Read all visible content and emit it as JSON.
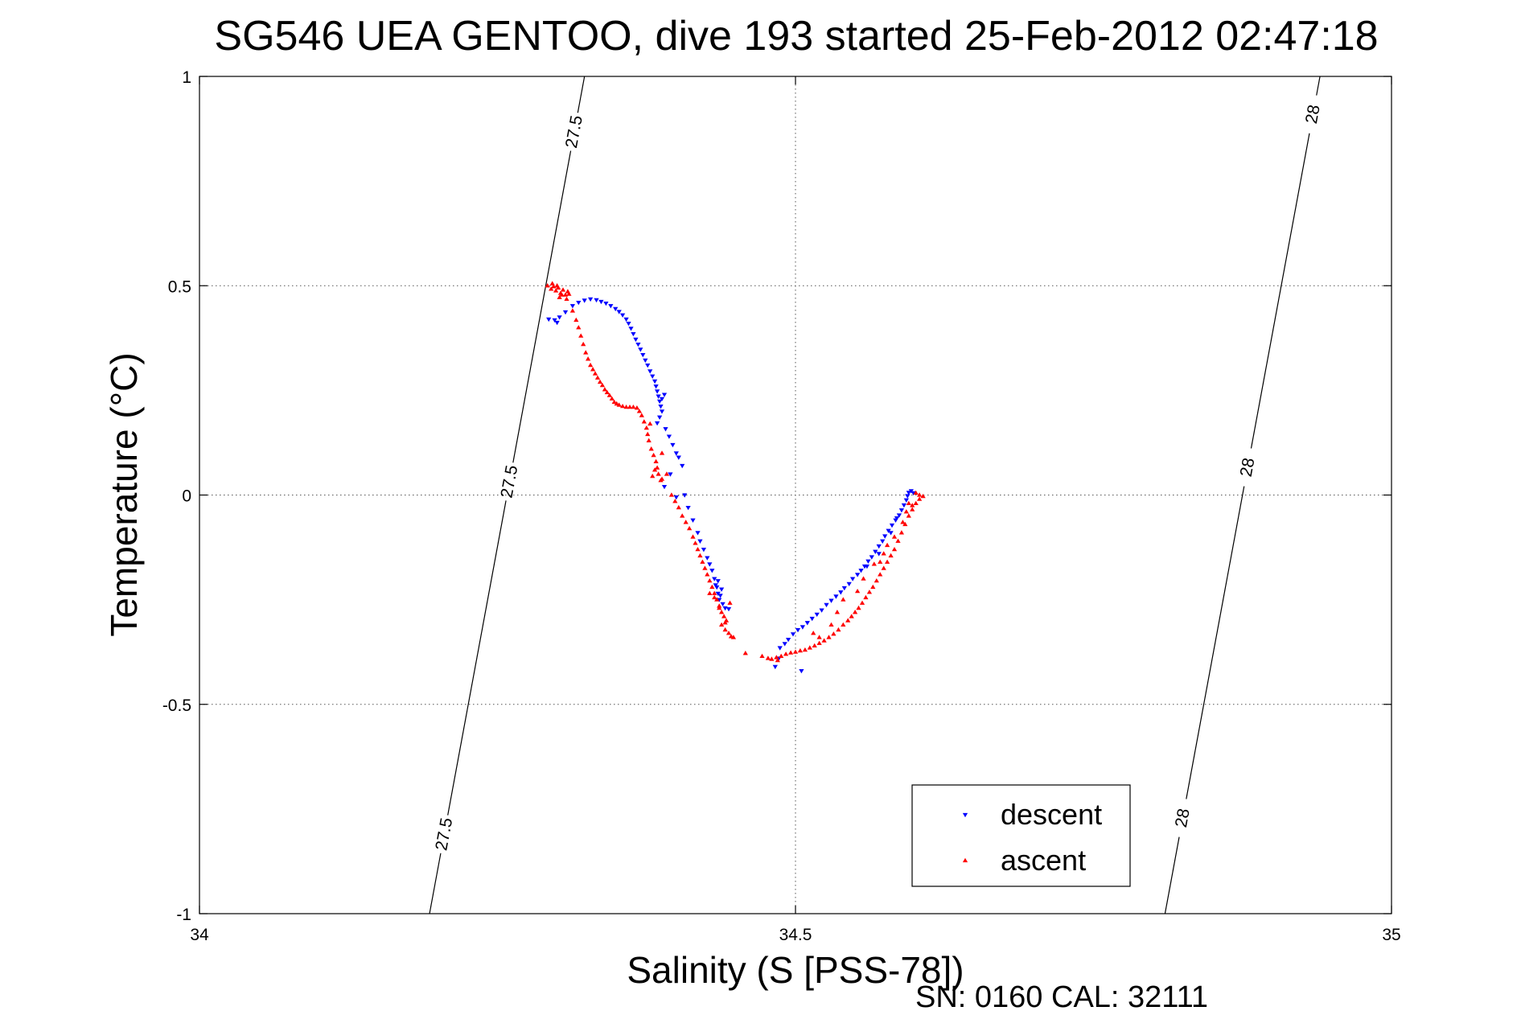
{
  "chart_data": {
    "type": "scatter",
    "title": "SG546 UEA GENTOO, dive 193 started 25-Feb-2012 02:47:18",
    "xlabel": "Salinity (S [PSS-78])",
    "ylabel": "Temperature (°C)",
    "xlim": [
      34,
      35
    ],
    "ylim": [
      -1,
      1
    ],
    "xticks": [
      "34",
      "34.5",
      "35"
    ],
    "yticks": [
      "1",
      "0.5",
      "0",
      "-0.5",
      "-1"
    ],
    "grid": true,
    "legend_position": "bottom-right",
    "footer": "SN: 0160  CAL: 32111",
    "density_contours": [
      {
        "label": "27.5",
        "points": [
          [
            34.193,
            -1.0
          ],
          [
            34.323,
            1.0
          ]
        ],
        "label_positions": [
          [
            34.205,
            -0.81
          ],
          [
            34.245,
            0.04
          ],
          [
            34.31,
            0.87
          ]
        ]
      },
      {
        "label": "28",
        "points": [
          [
            34.81,
            -1.0
          ],
          [
            34.94,
            1.0
          ]
        ],
        "label_positions": [
          [
            34.822,
            -0.77
          ],
          [
            34.872,
            0.07
          ],
          [
            34.933,
            0.91
          ]
        ]
      }
    ],
    "series": [
      {
        "name": "descent",
        "color": "#0000ff",
        "marker": "triangle-down",
        "points": [
          [
            34.293,
            0.42
          ],
          [
            34.298,
            0.418
          ],
          [
            34.3,
            0.412
          ],
          [
            34.302,
            0.425
          ],
          [
            34.307,
            0.437
          ],
          [
            34.313,
            0.452
          ],
          [
            34.318,
            0.46
          ],
          [
            34.323,
            0.465
          ],
          [
            34.328,
            0.468
          ],
          [
            34.333,
            0.466
          ],
          [
            34.337,
            0.462
          ],
          [
            34.341,
            0.458
          ],
          [
            34.345,
            0.452
          ],
          [
            34.349,
            0.445
          ],
          [
            34.352,
            0.438
          ],
          [
            34.355,
            0.43
          ],
          [
            34.358,
            0.42
          ],
          [
            34.36,
            0.41
          ],
          [
            34.362,
            0.398
          ],
          [
            34.364,
            0.385
          ],
          [
            34.366,
            0.372
          ],
          [
            34.368,
            0.36
          ],
          [
            34.37,
            0.348
          ],
          [
            34.372,
            0.335
          ],
          [
            34.374,
            0.322
          ],
          [
            34.376,
            0.31
          ],
          [
            34.378,
            0.296
          ],
          [
            34.38,
            0.284
          ],
          [
            34.382,
            0.272
          ],
          [
            34.383,
            0.26
          ],
          [
            34.384,
            0.248
          ],
          [
            34.385,
            0.236
          ],
          [
            34.386,
            0.224
          ],
          [
            34.387,
            0.212
          ],
          [
            34.388,
            0.2
          ],
          [
            34.386,
            0.186
          ],
          [
            34.384,
            0.172
          ],
          [
            34.388,
            0.23
          ],
          [
            34.39,
            0.24
          ],
          [
            34.391,
            0.158
          ],
          [
            34.394,
            0.14
          ],
          [
            34.397,
            0.12
          ],
          [
            34.4,
            0.1
          ],
          [
            34.402,
            0.09
          ],
          [
            34.405,
            0.07
          ],
          [
            34.395,
            0.05
          ],
          [
            34.39,
            0.02
          ],
          [
            34.4,
            -0.005
          ],
          [
            34.407,
            0.0
          ],
          [
            34.41,
            -0.03
          ],
          [
            34.414,
            -0.06
          ],
          [
            34.418,
            -0.09
          ],
          [
            34.42,
            -0.11
          ],
          [
            34.423,
            -0.13
          ],
          [
            34.426,
            -0.15
          ],
          [
            34.428,
            -0.165
          ],
          [
            34.43,
            -0.18
          ],
          [
            34.432,
            -0.2
          ],
          [
            34.434,
            -0.22
          ],
          [
            34.435,
            -0.235
          ],
          [
            34.436,
            -0.25
          ],
          [
            34.437,
            -0.24
          ],
          [
            34.439,
            -0.26
          ],
          [
            34.441,
            -0.27
          ],
          [
            34.444,
            -0.272
          ],
          [
            34.435,
            -0.205
          ],
          [
            34.433,
            -0.215
          ],
          [
            34.438,
            -0.225
          ],
          [
            34.483,
            -0.41
          ],
          [
            34.486,
            -0.39
          ],
          [
            34.487,
            -0.365
          ],
          [
            34.491,
            -0.355
          ],
          [
            34.494,
            -0.345
          ],
          [
            34.498,
            -0.332
          ],
          [
            34.502,
            -0.322
          ],
          [
            34.506,
            -0.315
          ],
          [
            34.51,
            -0.305
          ],
          [
            34.514,
            -0.295
          ],
          [
            34.518,
            -0.285
          ],
          [
            34.522,
            -0.275
          ],
          [
            34.526,
            -0.262
          ],
          [
            34.53,
            -0.252
          ],
          [
            34.534,
            -0.242
          ],
          [
            34.538,
            -0.232
          ],
          [
            34.541,
            -0.222
          ],
          [
            34.545,
            -0.212
          ],
          [
            34.548,
            -0.2
          ],
          [
            34.552,
            -0.19
          ],
          [
            34.555,
            -0.18
          ],
          [
            34.558,
            -0.17
          ],
          [
            34.561,
            -0.158
          ],
          [
            34.564,
            -0.148
          ],
          [
            34.567,
            -0.135
          ],
          [
            34.57,
            -0.122
          ],
          [
            34.573,
            -0.11
          ],
          [
            34.575,
            -0.098
          ],
          [
            34.578,
            -0.085
          ],
          [
            34.581,
            -0.072
          ],
          [
            34.584,
            -0.06
          ],
          [
            34.587,
            -0.048
          ],
          [
            34.589,
            -0.036
          ],
          [
            34.591,
            -0.024
          ],
          [
            34.593,
            -0.012
          ],
          [
            34.594,
            -0.002
          ],
          [
            34.595,
            0.006
          ],
          [
            34.597,
            0.01
          ],
          [
            34.599,
            0.005
          ],
          [
            34.585,
            -0.055
          ],
          [
            34.58,
            -0.09
          ],
          [
            34.57,
            -0.14
          ],
          [
            34.56,
            -0.17
          ],
          [
            34.505,
            -0.42
          ]
        ]
      },
      {
        "name": "ascent",
        "color": "#ff0000",
        "marker": "triangle-up",
        "points": [
          [
            34.292,
            0.5
          ],
          [
            34.295,
            0.492
          ],
          [
            34.297,
            0.498
          ],
          [
            34.299,
            0.488
          ],
          [
            34.301,
            0.495
          ],
          [
            34.303,
            0.482
          ],
          [
            34.305,
            0.49
          ],
          [
            34.307,
            0.478
          ],
          [
            34.309,
            0.486
          ],
          [
            34.302,
            0.472
          ],
          [
            34.304,
            0.478
          ],
          [
            34.308,
            0.468
          ],
          [
            34.3,
            0.5
          ],
          [
            34.296,
            0.505
          ],
          [
            34.31,
            0.48
          ],
          [
            34.313,
            0.44
          ],
          [
            34.316,
            0.418
          ],
          [
            34.318,
            0.4
          ],
          [
            34.32,
            0.38
          ],
          [
            34.322,
            0.36
          ],
          [
            34.324,
            0.34
          ],
          [
            34.326,
            0.325
          ],
          [
            34.328,
            0.31
          ],
          [
            34.33,
            0.3
          ],
          [
            34.332,
            0.29
          ],
          [
            34.334,
            0.28
          ],
          [
            34.336,
            0.27
          ],
          [
            34.338,
            0.262
          ],
          [
            34.34,
            0.252
          ],
          [
            34.342,
            0.245
          ],
          [
            34.344,
            0.238
          ],
          [
            34.346,
            0.23
          ],
          [
            34.348,
            0.222
          ],
          [
            34.35,
            0.218
          ],
          [
            34.352,
            0.215
          ],
          [
            34.355,
            0.212
          ],
          [
            34.358,
            0.21
          ],
          [
            34.361,
            0.21
          ],
          [
            34.364,
            0.21
          ],
          [
            34.367,
            0.208
          ],
          [
            34.369,
            0.2
          ],
          [
            34.371,
            0.19
          ],
          [
            34.373,
            0.175
          ],
          [
            34.375,
            0.16
          ],
          [
            34.376,
            0.145
          ],
          [
            34.377,
            0.13
          ],
          [
            34.379,
            0.11
          ],
          [
            34.381,
            0.095
          ],
          [
            34.383,
            0.08
          ],
          [
            34.384,
            0.065
          ],
          [
            34.385,
            0.05
          ],
          [
            34.387,
            0.035
          ],
          [
            34.378,
            0.17
          ],
          [
            34.382,
            0.06
          ],
          [
            34.388,
            0.038
          ],
          [
            34.38,
            0.045
          ],
          [
            34.388,
            0.1
          ],
          [
            34.392,
            0.05
          ],
          [
            34.396,
            0.0
          ],
          [
            34.399,
            -0.015
          ],
          [
            34.402,
            -0.03
          ],
          [
            34.405,
            -0.05
          ],
          [
            34.408,
            -0.065
          ],
          [
            34.411,
            -0.08
          ],
          [
            34.414,
            -0.1
          ],
          [
            34.416,
            -0.115
          ],
          [
            34.418,
            -0.13
          ],
          [
            34.42,
            -0.145
          ],
          [
            34.422,
            -0.16
          ],
          [
            34.424,
            -0.175
          ],
          [
            34.426,
            -0.19
          ],
          [
            34.428,
            -0.205
          ],
          [
            34.43,
            -0.22
          ],
          [
            34.432,
            -0.235
          ],
          [
            34.434,
            -0.25
          ],
          [
            34.436,
            -0.265
          ],
          [
            34.438,
            -0.28
          ],
          [
            34.44,
            -0.29
          ],
          [
            34.442,
            -0.3
          ],
          [
            34.438,
            -0.31
          ],
          [
            34.441,
            -0.322
          ],
          [
            34.444,
            -0.33
          ],
          [
            34.446,
            -0.338
          ],
          [
            34.441,
            -0.305
          ],
          [
            34.445,
            -0.258
          ],
          [
            34.436,
            -0.27
          ],
          [
            34.428,
            -0.235
          ],
          [
            34.432,
            -0.245
          ],
          [
            34.448,
            -0.34
          ],
          [
            34.458,
            -0.378
          ],
          [
            34.472,
            -0.385
          ],
          [
            34.477,
            -0.39
          ],
          [
            34.48,
            -0.392
          ],
          [
            34.484,
            -0.388
          ],
          [
            34.488,
            -0.385
          ],
          [
            34.492,
            -0.38
          ],
          [
            34.496,
            -0.377
          ],
          [
            34.5,
            -0.375
          ],
          [
            34.504,
            -0.372
          ],
          [
            34.508,
            -0.37
          ],
          [
            34.512,
            -0.365
          ],
          [
            34.516,
            -0.36
          ],
          [
            34.52,
            -0.354
          ],
          [
            34.524,
            -0.348
          ],
          [
            34.528,
            -0.34
          ],
          [
            34.532,
            -0.332
          ],
          [
            34.536,
            -0.322
          ],
          [
            34.54,
            -0.31
          ],
          [
            34.544,
            -0.3
          ],
          [
            34.547,
            -0.29
          ],
          [
            34.55,
            -0.28
          ],
          [
            34.553,
            -0.27
          ],
          [
            34.556,
            -0.258
          ],
          [
            34.559,
            -0.245
          ],
          [
            34.562,
            -0.232
          ],
          [
            34.565,
            -0.22
          ],
          [
            34.568,
            -0.205
          ],
          [
            34.571,
            -0.19
          ],
          [
            34.574,
            -0.175
          ],
          [
            34.577,
            -0.16
          ],
          [
            34.58,
            -0.145
          ],
          [
            34.583,
            -0.13
          ],
          [
            34.586,
            -0.11
          ],
          [
            34.589,
            -0.09
          ],
          [
            34.592,
            -0.07
          ],
          [
            34.595,
            -0.05
          ],
          [
            34.598,
            -0.035
          ],
          [
            34.601,
            -0.02
          ],
          [
            34.604,
            -0.01
          ],
          [
            34.607,
            -0.003
          ],
          [
            34.604,
            0.0
          ],
          [
            34.601,
            0.005
          ],
          [
            34.598,
            -0.025
          ],
          [
            34.595,
            -0.02
          ],
          [
            34.593,
            -0.04
          ],
          [
            34.59,
            -0.065
          ],
          [
            34.583,
            -0.1
          ],
          [
            34.577,
            -0.12
          ],
          [
            34.574,
            -0.14
          ],
          [
            34.571,
            -0.16
          ],
          [
            34.566,
            -0.165
          ],
          [
            34.557,
            -0.2
          ],
          [
            34.552,
            -0.23
          ],
          [
            34.54,
            -0.25
          ],
          [
            34.535,
            -0.28
          ],
          [
            34.53,
            -0.31
          ],
          [
            34.52,
            -0.34
          ],
          [
            34.515,
            -0.33
          ],
          [
            34.485,
            -0.395
          ]
        ]
      }
    ]
  }
}
